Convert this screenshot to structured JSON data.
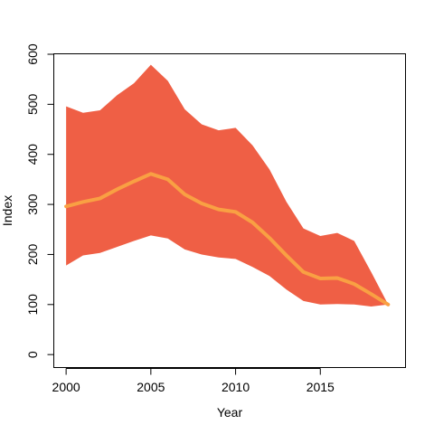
{
  "chart_data": {
    "type": "area",
    "title": "",
    "xlabel": "Year",
    "ylabel": "Index",
    "xlim": [
      1999.3,
      2020.0
    ],
    "ylim": [
      -25,
      600
    ],
    "x_ticks": [
      2000,
      2005,
      2010,
      2015
    ],
    "y_ticks": [
      0,
      100,
      200,
      300,
      400,
      500,
      600
    ],
    "grid": false,
    "colors": {
      "band": "#ef5f45",
      "line": "#f9a043",
      "axis": "#000000"
    },
    "series": [
      {
        "x": [
          2000,
          2001,
          2002,
          2003,
          2004,
          2005,
          2006,
          2007,
          2008,
          2009,
          2010,
          2011,
          2012,
          2013,
          2014,
          2015,
          2016,
          2017,
          2018,
          2019
        ],
        "lower": [
          178,
          198,
          203,
          215,
          227,
          238,
          232,
          210,
          200,
          194,
          191,
          175,
          157,
          130,
          107,
          100,
          101,
          100,
          96,
          100
        ],
        "upper": [
          496,
          483,
          488,
          518,
          542,
          579,
          547,
          490,
          460,
          448,
          453,
          418,
          370,
          305,
          252,
          237,
          243,
          227,
          165,
          100
        ],
        "mean": [
          296,
          305,
          312,
          330,
          346,
          361,
          350,
          320,
          302,
          290,
          285,
          264,
          233,
          198,
          165,
          152,
          153,
          141,
          121,
          100
        ]
      }
    ]
  }
}
